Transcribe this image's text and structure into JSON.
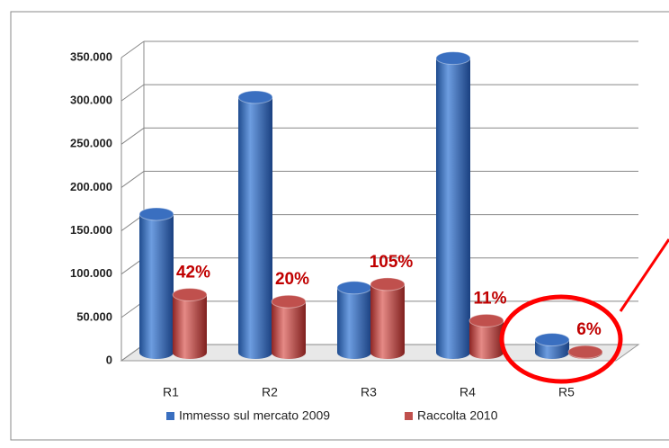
{
  "chart_data": {
    "type": "bar3d",
    "categories": [
      "R1",
      "R2",
      "R3",
      "R4",
      "R5"
    ],
    "series": [
      {
        "name": "Immesso sul mercato 2009",
        "color": "#3a6fc0",
        "values": [
          160000,
          295000,
          75000,
          340000,
          15000
        ]
      },
      {
        "name": "Raccolta 2010",
        "color": "#c0504d",
        "values": [
          67000,
          59000,
          79000,
          37000,
          900
        ],
        "data_labels": [
          "42%",
          "20%",
          "105%",
          "11%",
          "6%"
        ]
      }
    ],
    "ylim": [
      0,
      350000
    ],
    "yticks": [
      {
        "value": 0,
        "label": "0"
      },
      {
        "value": 50000,
        "label": "50.000"
      },
      {
        "value": 100000,
        "label": "100.000"
      },
      {
        "value": 150000,
        "label": "150.000"
      },
      {
        "value": 200000,
        "label": "200.000"
      },
      {
        "value": 250000,
        "label": "250.000"
      },
      {
        "value": 300000,
        "label": "300.000"
      },
      {
        "value": 350000,
        "label": "350.000"
      }
    ],
    "grid": true,
    "legend": "bottom"
  }
}
